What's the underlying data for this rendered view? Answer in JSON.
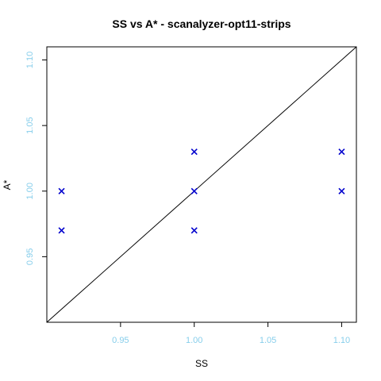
{
  "chart_data": {
    "type": "scatter",
    "title": "SS vs A* - scanalyzer-opt11-strips",
    "xlabel": "SS",
    "ylabel": "A*",
    "xlim": [
      0.9,
      1.11
    ],
    "ylim": [
      0.9,
      1.11
    ],
    "x_ticks": [
      0.95,
      1.0,
      1.05,
      1.1
    ],
    "y_ticks": [
      0.95,
      1.0,
      1.05,
      1.1
    ],
    "x_tick_labels": [
      "0.95",
      "1.00",
      "1.05",
      "1.10"
    ],
    "y_tick_labels": [
      "0.95",
      "1.00",
      "1.05",
      "1.10"
    ],
    "series": [
      {
        "marker": "x",
        "points": [
          [
            0.91,
            1.0
          ],
          [
            0.91,
            0.97
          ],
          [
            1.0,
            1.03
          ],
          [
            1.0,
            1.0
          ],
          [
            1.0,
            0.97
          ],
          [
            1.1,
            1.03
          ],
          [
            1.1,
            1.0
          ]
        ]
      }
    ],
    "reference_line": "diagonal y = x",
    "grid": false,
    "colors": {
      "points": "#0000cd",
      "ticks": "#87ceeb",
      "axes": "#000000"
    }
  }
}
